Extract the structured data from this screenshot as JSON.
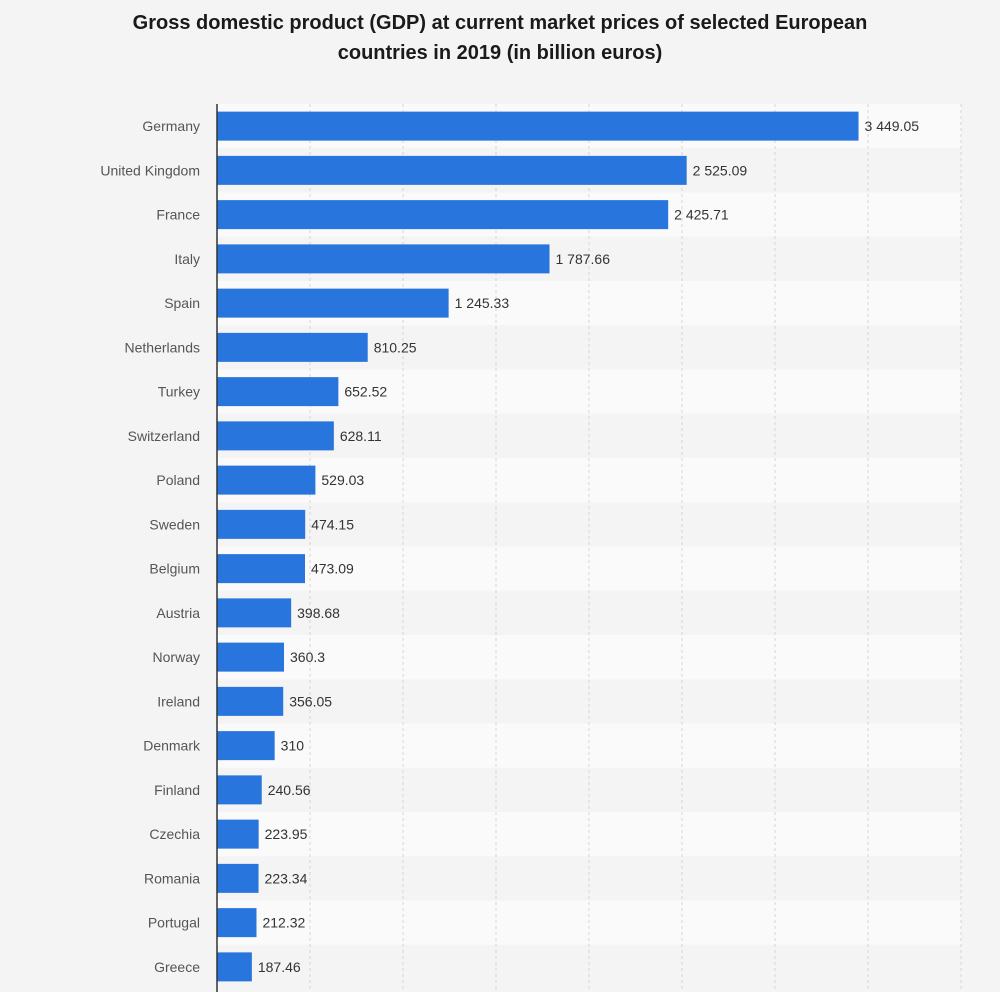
{
  "chart_data": {
    "type": "bar",
    "orientation": "horizontal",
    "title": "Gross domestic product (GDP) at current market prices of selected European countries in 2019 (in billion euros)",
    "title_lines": [
      "Gross domestic product (GDP) at current market prices of selected European",
      "countries in 2019 (in billion euros)"
    ],
    "categories": [
      "Germany",
      "United Kingdom",
      "France",
      "Italy",
      "Spain",
      "Netherlands",
      "Turkey",
      "Switzerland",
      "Poland",
      "Sweden",
      "Belgium",
      "Austria",
      "Norway",
      "Ireland",
      "Denmark",
      "Finland",
      "Czechia",
      "Romania",
      "Portugal",
      "Greece"
    ],
    "values": [
      3449.05,
      2525.09,
      2425.71,
      1787.66,
      1245.33,
      810.25,
      652.52,
      628.11,
      529.03,
      474.15,
      473.09,
      398.68,
      360.3,
      356.05,
      310,
      240.56,
      223.95,
      223.34,
      212.32,
      187.46
    ],
    "value_labels": [
      "3 449.05",
      "2 525.09",
      "2 425.71",
      "1 787.66",
      "1 245.33",
      "810.25",
      "652.52",
      "628.11",
      "529.03",
      "474.15",
      "473.09",
      "398.68",
      "360.3",
      "356.05",
      "310",
      "240.56",
      "223.95",
      "223.34",
      "212.32",
      "187.46"
    ],
    "xlim": [
      0,
      4000
    ],
    "gridlines": [
      0,
      500,
      1000,
      1500,
      2000,
      2500,
      3000,
      3500,
      4000
    ],
    "grid": true,
    "xlabel": "",
    "ylabel": "",
    "colors": {
      "bar": "#2876dd",
      "background": "#f4f4f4",
      "band_light": "#fafafa",
      "gridline": "#d5d5d5",
      "axis": "#333333"
    }
  }
}
